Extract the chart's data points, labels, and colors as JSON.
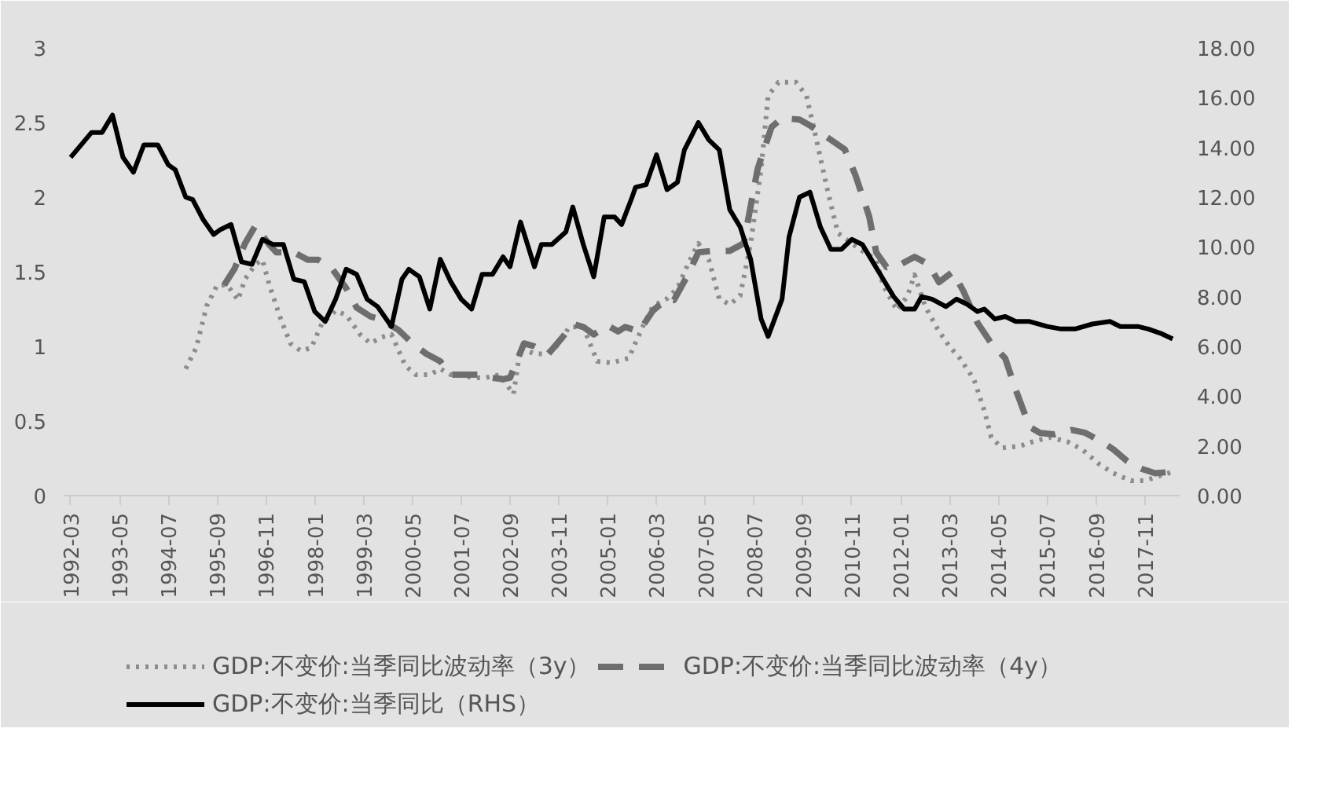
{
  "chart_data": {
    "type": "line",
    "xlim": [
      "1992-01",
      "2018-09"
    ],
    "xticks": [
      "1992-03",
      "1993-05",
      "1994-07",
      "1995-09",
      "1996-11",
      "1998-01",
      "1999-03",
      "2000-05",
      "2001-07",
      "2002-09",
      "2003-11",
      "2005-01",
      "2006-03",
      "2007-05",
      "2008-07",
      "2009-09",
      "2010-11",
      "2012-01",
      "2013-03",
      "2014-05",
      "2015-07",
      "2016-09",
      "2017-11"
    ],
    "ylim": [
      0,
      3
    ],
    "yticks": [
      0,
      0.5,
      1,
      1.5,
      2,
      2.5,
      3
    ],
    "y2lim": [
      0,
      18
    ],
    "y2ticks": [
      {
        "value": 0,
        "label": "0.00"
      },
      {
        "value": 2,
        "label": "2.00"
      },
      {
        "value": 4,
        "label": "4.00"
      },
      {
        "value": 6,
        "label": "6.00"
      },
      {
        "value": 8,
        "label": "8.00"
      },
      {
        "value": 10,
        "label": "10.00"
      },
      {
        "value": 12,
        "label": "12.00"
      },
      {
        "value": 14,
        "label": "14.00"
      },
      {
        "value": 16,
        "label": "16.00"
      },
      {
        "value": 18,
        "label": "18.00"
      }
    ],
    "grid": false,
    "legend": "bottom",
    "series": [
      {
        "name": "GDP:不变价:当季同比波动率（3y）",
        "color": "#8c8c8c",
        "line_style": "dotted",
        "x": [
          "1994-12",
          "1995-03",
          "1995-06",
          "1995-09",
          "1995-12",
          "1996-03",
          "1996-05",
          "1996-08",
          "1996-10",
          "1996-12",
          "1997-03",
          "1997-06",
          "1997-09",
          "1997-12",
          "1998-03",
          "1998-07",
          "1998-10",
          "1999-02",
          "1999-05",
          "1999-08",
          "1999-11",
          "2000-03",
          "2000-06",
          "2000-10",
          "2001-01",
          "2001-04",
          "2001-07",
          "2001-10",
          "2002-02",
          "2002-06",
          "2002-10",
          "2002-12",
          "2003-04",
          "2003-07",
          "2003-10",
          "2004-02",
          "2004-06",
          "2004-10",
          "2005-02",
          "2005-07",
          "2005-11",
          "2006-02",
          "2006-06",
          "2006-09",
          "2006-12",
          "2007-03",
          "2007-06",
          "2007-09",
          "2007-12",
          "2008-03",
          "2008-06",
          "2008-09",
          "2008-11",
          "2009-02",
          "2009-07",
          "2009-10",
          "2010-01",
          "2010-04",
          "2010-07",
          "2010-11",
          "2011-02",
          "2011-06",
          "2011-08",
          "2011-12",
          "2012-03",
          "2012-05",
          "2012-08",
          "2012-12",
          "2013-03",
          "2013-06",
          "2013-10",
          "2014-01",
          "2014-03",
          "2014-06",
          "2014-11",
          "2015-04",
          "2015-08",
          "2016-01",
          "2016-05",
          "2016-10",
          "2017-02",
          "2017-07",
          "2017-11",
          "2018-03",
          "2018-07"
        ],
        "values": [
          0.85,
          0.99,
          1.27,
          1.41,
          1.41,
          1.31,
          1.45,
          1.55,
          1.58,
          1.41,
          1.2,
          1.02,
          0.97,
          0.99,
          1.15,
          1.24,
          1.21,
          1.08,
          1.02,
          1.06,
          1.08,
          0.87,
          0.81,
          0.81,
          0.85,
          0.81,
          0.81,
          0.79,
          0.79,
          0.81,
          0.68,
          0.99,
          0.95,
          0.95,
          0.99,
          1.13,
          1.13,
          0.9,
          0.89,
          0.92,
          1.13,
          1.27,
          1.32,
          1.39,
          1.55,
          1.69,
          1.58,
          1.32,
          1.28,
          1.34,
          1.69,
          2.19,
          2.68,
          2.77,
          2.77,
          2.68,
          2.37,
          2.05,
          1.76,
          1.69,
          1.64,
          1.58,
          1.41,
          1.24,
          1.34,
          1.48,
          1.27,
          1.1,
          1.0,
          0.92,
          0.78,
          0.57,
          0.39,
          0.32,
          0.33,
          0.37,
          0.39,
          0.36,
          0.31,
          0.21,
          0.15,
          0.1,
          0.1,
          0.13,
          0.16
        ]
      },
      {
        "name": "GDP:不变价:当季同比波动率（4y）",
        "color": "#6e6e6e",
        "line_style": "dashed",
        "x": [
          "1995-11",
          "1996-02",
          "1996-05",
          "1996-08",
          "1996-12",
          "1997-02",
          "1997-07",
          "1997-11",
          "1998-02",
          "1998-06",
          "1998-10",
          "1999-01",
          "1999-05",
          "1999-08",
          "2000-01",
          "2000-05",
          "2000-09",
          "2001-01",
          "2001-04",
          "2001-08",
          "2001-12",
          "2002-04",
          "2002-07",
          "2002-09",
          "2003-01",
          "2003-04",
          "2003-08",
          "2003-12",
          "2004-03",
          "2004-06",
          "2004-09",
          "2005-01",
          "2005-04",
          "2005-06",
          "2005-10",
          "2006-02",
          "2006-06",
          "2006-08",
          "2006-12",
          "2007-03",
          "2007-07",
          "2007-12",
          "2008-04",
          "2008-08",
          "2008-12",
          "2009-03",
          "2009-08",
          "2009-11",
          "2010-04",
          "2010-09",
          "2010-12",
          "2011-04",
          "2011-06",
          "2011-09",
          "2012-01",
          "2012-05",
          "2012-09",
          "2012-12",
          "2013-04",
          "2013-07",
          "2013-11",
          "2014-03",
          "2014-07",
          "2014-10",
          "2015-02",
          "2015-05",
          "2015-09",
          "2016-02",
          "2016-06",
          "2016-10",
          "2017-02",
          "2017-06",
          "2017-10",
          "2018-02",
          "2018-07"
        ],
        "values": [
          1.41,
          1.52,
          1.69,
          1.81,
          1.68,
          1.63,
          1.63,
          1.58,
          1.58,
          1.52,
          1.39,
          1.26,
          1.2,
          1.18,
          1.11,
          1.02,
          0.95,
          0.9,
          0.81,
          0.81,
          0.81,
          0.79,
          0.78,
          0.79,
          1.02,
          1.0,
          0.95,
          1.06,
          1.15,
          1.13,
          1.08,
          1.14,
          1.1,
          1.13,
          1.1,
          1.24,
          1.32,
          1.31,
          1.48,
          1.63,
          1.64,
          1.64,
          1.69,
          2.19,
          2.47,
          2.53,
          2.52,
          2.48,
          2.4,
          2.32,
          2.15,
          1.87,
          1.63,
          1.53,
          1.55,
          1.6,
          1.55,
          1.43,
          1.5,
          1.37,
          1.16,
          1.02,
          0.92,
          0.71,
          0.46,
          0.42,
          0.41,
          0.44,
          0.42,
          0.37,
          0.31,
          0.23,
          0.18,
          0.15,
          0.16
        ]
      },
      {
        "name": "GDP:不变价:当季同比（RHS）",
        "color": "#000000",
        "line_style": "solid",
        "axis": "y2",
        "x": [
          "1992-03",
          "1992-09",
          "1992-12",
          "1993-03",
          "1993-06",
          "1993-09",
          "1993-12",
          "1994-04",
          "1994-07",
          "1994-09",
          "1994-12",
          "1995-02",
          "1995-05",
          "1995-08",
          "1995-10",
          "1996-01",
          "1996-04",
          "1996-07",
          "1996-10",
          "1997-01",
          "1997-04",
          "1997-07",
          "1997-10",
          "1998-01",
          "1998-04",
          "1998-07",
          "1998-10",
          "1999-01",
          "1999-04",
          "1999-07",
          "1999-11",
          "2000-02",
          "2000-04",
          "2000-07",
          "2000-10",
          "2001-01",
          "2001-04",
          "2001-07",
          "2001-10",
          "2002-01",
          "2002-04",
          "2002-07",
          "2002-09",
          "2002-12",
          "2003-04",
          "2003-06",
          "2003-09",
          "2004-01",
          "2004-03",
          "2004-06",
          "2004-09",
          "2004-12",
          "2005-03",
          "2005-05",
          "2005-08",
          "2005-09",
          "2005-12",
          "2006-03",
          "2006-06",
          "2006-09",
          "2006-11",
          "2007-03",
          "2007-06",
          "2007-09",
          "2007-12",
          "2008-03",
          "2008-06",
          "2008-09",
          "2008-11",
          "2009-03",
          "2009-05",
          "2009-08",
          "2009-11",
          "2010-02",
          "2010-05",
          "2010-08",
          "2010-11",
          "2011-02",
          "2011-05",
          "2011-08",
          "2011-11",
          "2012-02",
          "2012-05",
          "2012-07",
          "2012-10",
          "2013-02",
          "2013-05",
          "2013-08",
          "2013-11",
          "2014-01",
          "2014-04",
          "2014-07",
          "2014-10",
          "2015-02",
          "2015-07",
          "2015-11",
          "2016-03",
          "2016-08",
          "2017-01",
          "2017-04",
          "2017-09",
          "2017-12",
          "2018-04",
          "2018-07"
        ],
        "values": [
          13.6,
          14.6,
          14.6,
          15.3,
          13.6,
          13.0,
          14.1,
          14.1,
          13.3,
          13.1,
          12.0,
          11.9,
          11.1,
          10.5,
          10.7,
          10.9,
          9.4,
          9.3,
          10.3,
          10.1,
          10.1,
          8.7,
          8.6,
          7.4,
          7.0,
          7.9,
          9.1,
          8.9,
          7.9,
          7.6,
          6.8,
          8.7,
          9.1,
          8.8,
          7.5,
          9.5,
          8.6,
          7.9,
          7.5,
          8.9,
          8.9,
          9.6,
          9.2,
          11.0,
          9.2,
          10.1,
          10.1,
          10.6,
          11.6,
          10.1,
          8.8,
          11.2,
          11.2,
          10.9,
          12.0,
          12.4,
          12.5,
          13.7,
          12.3,
          12.6,
          13.9,
          15.0,
          14.3,
          13.9,
          11.5,
          10.8,
          9.5,
          7.1,
          6.4,
          7.9,
          10.4,
          12.0,
          12.2,
          10.8,
          9.9,
          9.9,
          10.3,
          10.1,
          9.4,
          8.7,
          8.0,
          7.5,
          7.5,
          8.0,
          7.9,
          7.6,
          7.9,
          7.7,
          7.4,
          7.5,
          7.1,
          7.2,
          7.0,
          7.0,
          6.8,
          6.7,
          6.7,
          6.9,
          7.0,
          6.8,
          6.8,
          6.7,
          6.5,
          6.3
        ]
      }
    ]
  }
}
